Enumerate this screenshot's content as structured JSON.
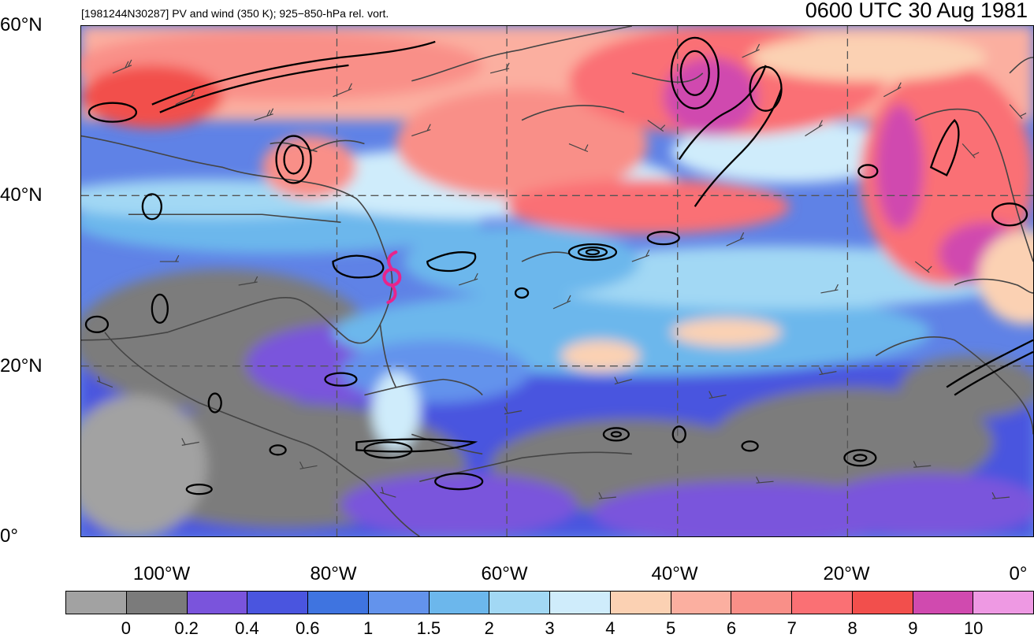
{
  "header": {
    "subtitle": "[1981244N30287] PV and wind (350 K); 925−850-hPa rel. vort.",
    "datetime": "0600 UTC 30 Aug 1981"
  },
  "axes": {
    "lat_labels": [
      {
        "key": "60",
        "text": "60°N"
      },
      {
        "key": "40",
        "text": "40°N"
      },
      {
        "key": "20",
        "text": "20°N"
      },
      {
        "key": "0",
        "text": "0°"
      }
    ],
    "lon_labels": [
      {
        "key": "100w",
        "text": "100°W"
      },
      {
        "key": "80w",
        "text": "80°W"
      },
      {
        "key": "60w",
        "text": "60°W"
      },
      {
        "key": "40w",
        "text": "40°W"
      },
      {
        "key": "20w",
        "text": "20°W"
      },
      {
        "key": "0",
        "text": "0°"
      }
    ]
  },
  "colorbar": {
    "colors": [
      "#a2a2a2",
      "#7b7b7b",
      "#7a54dc",
      "#4a55df",
      "#3f74e0",
      "#6393ec",
      "#6cb7ec",
      "#a2d8f4",
      "#cfecfb",
      "#fbd1b3",
      "#fbafa0",
      "#f98f88",
      "#fa7074",
      "#f24f4c",
      "#d04aaf",
      "#ee99e3"
    ],
    "labels": [
      "0",
      "0.2",
      "0.4",
      "0.6",
      "1",
      "1.5",
      "2",
      "3",
      "4",
      "5",
      "6",
      "7",
      "8",
      "9",
      "10"
    ]
  },
  "storm": {
    "symbol_color": "#e8248c"
  }
}
